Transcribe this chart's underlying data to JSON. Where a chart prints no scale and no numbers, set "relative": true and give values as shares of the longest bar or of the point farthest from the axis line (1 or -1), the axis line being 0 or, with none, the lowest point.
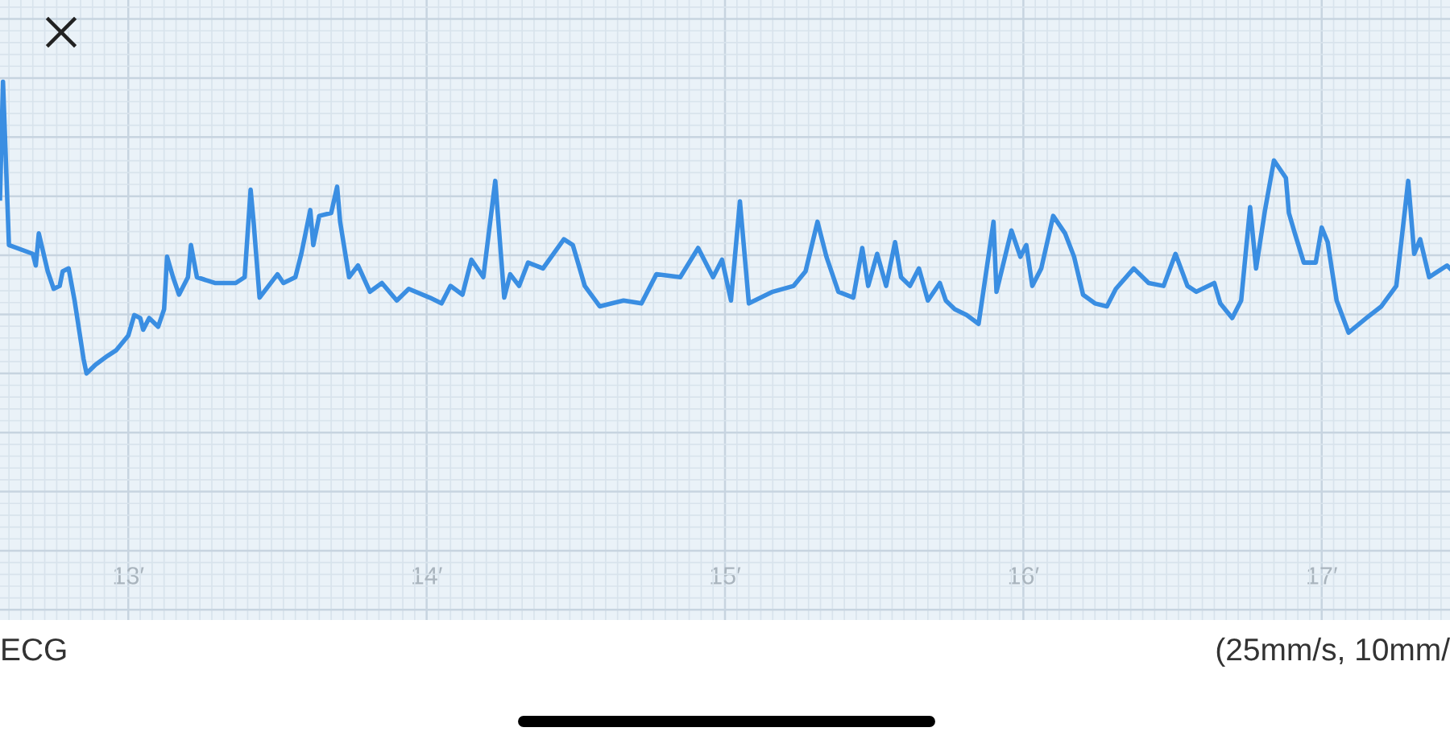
{
  "chart_data": {
    "type": "line",
    "title": "ECG",
    "annotations": [
      "(25mm/s, 10mm/"
    ],
    "relative": true,
    "grid": true,
    "tick_labels": "x",
    "xlim": [
      12.57,
      17.43
    ],
    "xticks": [
      {
        "value": 13,
        "label": "13′"
      },
      {
        "value": 14,
        "label": "14′"
      },
      {
        "value": 15,
        "label": "15′"
      },
      {
        "value": 16,
        "label": "16′"
      },
      {
        "value": 17,
        "label": "17′"
      }
    ],
    "x": [
      12.57,
      12.58,
      12.6,
      12.68,
      12.69,
      12.7,
      12.73,
      12.75,
      12.77,
      12.78,
      12.8,
      12.82,
      12.85,
      12.86,
      12.89,
      12.93,
      12.96,
      13.0,
      13.02,
      13.04,
      13.05,
      13.07,
      13.1,
      13.12,
      13.13,
      13.15,
      13.17,
      13.2,
      13.21,
      13.23,
      13.29,
      13.36,
      13.39,
      13.41,
      13.42,
      13.44,
      13.47,
      13.5,
      13.52,
      13.56,
      13.58,
      13.61,
      13.62,
      13.64,
      13.68,
      13.7,
      13.71,
      13.74,
      13.77,
      13.81,
      13.85,
      13.9,
      13.94,
      14.01,
      14.05,
      14.08,
      14.12,
      14.15,
      14.19,
      14.23,
      14.26,
      14.28,
      14.31,
      14.34,
      14.39,
      14.46,
      14.49,
      14.53,
      14.58,
      14.66,
      14.72,
      14.77,
      14.85,
      14.91,
      14.96,
      14.99,
      15.02,
      15.05,
      15.08,
      15.16,
      15.23,
      15.27,
      15.31,
      15.34,
      15.38,
      15.43,
      15.46,
      15.48,
      15.51,
      15.54,
      15.57,
      15.59,
      15.62,
      15.65,
      15.68,
      15.72,
      15.74,
      15.77,
      15.81,
      15.85,
      15.9,
      15.91,
      15.96,
      15.99,
      16.01,
      16.03,
      16.06,
      16.1,
      16.14,
      16.17,
      16.2,
      16.24,
      16.28,
      16.31,
      16.37,
      16.42,
      16.47,
      16.51,
      16.55,
      16.58,
      16.64,
      16.66,
      16.7,
      16.73,
      16.76,
      16.78,
      16.81,
      16.84,
      16.88,
      16.89,
      16.91,
      16.94,
      16.98,
      17.0,
      17.02,
      17.05,
      17.09,
      17.15,
      17.2,
      17.25,
      17.29,
      17.31,
      17.33,
      17.36,
      17.42,
      17.43
    ],
    "series": [
      {
        "color": "#3a8ee2",
        "values": [
          0.6,
          1.0,
          0.44,
          0.41,
          0.37,
          0.48,
          0.35,
          0.29,
          0.3,
          0.35,
          0.36,
          0.25,
          0.05,
          0.0,
          0.03,
          0.06,
          0.08,
          0.13,
          0.2,
          0.19,
          0.15,
          0.19,
          0.16,
          0.22,
          0.4,
          0.33,
          0.27,
          0.33,
          0.44,
          0.33,
          0.31,
          0.31,
          0.33,
          0.63,
          0.52,
          0.26,
          0.3,
          0.34,
          0.31,
          0.33,
          0.41,
          0.56,
          0.44,
          0.54,
          0.55,
          0.64,
          0.52,
          0.33,
          0.37,
          0.28,
          0.31,
          0.25,
          0.29,
          0.26,
          0.24,
          0.3,
          0.27,
          0.39,
          0.33,
          0.66,
          0.26,
          0.34,
          0.3,
          0.38,
          0.36,
          0.46,
          0.44,
          0.3,
          0.23,
          0.25,
          0.24,
          0.34,
          0.33,
          0.43,
          0.33,
          0.39,
          0.25,
          0.59,
          0.24,
          0.28,
          0.3,
          0.35,
          0.52,
          0.4,
          0.28,
          0.26,
          0.43,
          0.3,
          0.41,
          0.3,
          0.45,
          0.33,
          0.3,
          0.36,
          0.25,
          0.31,
          0.25,
          0.22,
          0.2,
          0.17,
          0.52,
          0.28,
          0.49,
          0.4,
          0.44,
          0.3,
          0.36,
          0.54,
          0.48,
          0.4,
          0.27,
          0.24,
          0.23,
          0.29,
          0.36,
          0.31,
          0.3,
          0.41,
          0.3,
          0.28,
          0.31,
          0.24,
          0.19,
          0.25,
          0.57,
          0.36,
          0.56,
          0.73,
          0.67,
          0.55,
          0.48,
          0.38,
          0.38,
          0.5,
          0.45,
          0.25,
          0.14,
          0.19,
          0.23,
          0.3,
          0.66,
          0.41,
          0.46,
          0.33,
          0.37,
          0.36
        ]
      }
    ]
  }
}
